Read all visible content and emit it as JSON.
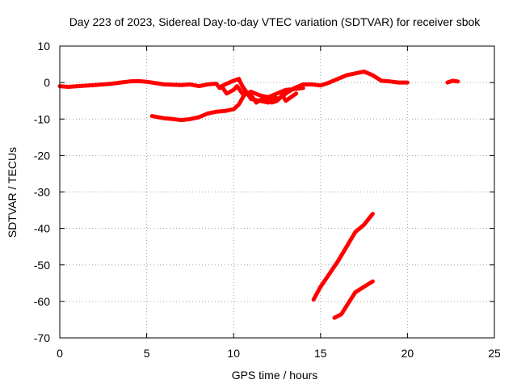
{
  "chart_data": {
    "type": "scatter",
    "title": "Day 223 of 2023, Sidereal Day-to-day VTEC variation (SDTVAR) for receiver sbok",
    "xlabel": "GPS time / hours",
    "ylabel": "SDTVAR / TECUs",
    "xlim": [
      0,
      25
    ],
    "ylim": [
      -70,
      10
    ],
    "xticks": [
      0,
      5,
      10,
      15,
      20,
      25
    ],
    "yticks": [
      10,
      0,
      -10,
      -20,
      -30,
      -40,
      -50,
      -60,
      -70
    ],
    "grid": true,
    "legend": "none",
    "color": "#ff0000",
    "series": [
      {
        "name": "track-main",
        "points": [
          [
            0,
            -1
          ],
          [
            0.5,
            -1.2
          ],
          [
            1,
            -1
          ],
          [
            2,
            -0.7
          ],
          [
            3,
            -0.3
          ],
          [
            3.5,
            0
          ],
          [
            4,
            0.3
          ],
          [
            4.5,
            0.4
          ],
          [
            5,
            0.2
          ],
          [
            6,
            -0.5
          ],
          [
            7,
            -0.7
          ],
          [
            7.5,
            -0.5
          ],
          [
            8,
            -1
          ],
          [
            8.5,
            -0.5
          ],
          [
            9,
            -0.3
          ],
          [
            9.2,
            -1.5
          ],
          [
            9.5,
            -0.5
          ],
          [
            10,
            0.5
          ],
          [
            10.3,
            1
          ],
          [
            10.5,
            -1
          ],
          [
            10.8,
            -3
          ],
          [
            11,
            -4.5
          ],
          [
            11.5,
            -5
          ],
          [
            12,
            -5.5
          ],
          [
            12.3,
            -4
          ],
          [
            12.6,
            -4.5
          ],
          [
            13,
            -3
          ],
          [
            13.5,
            -1.5
          ],
          [
            14,
            -0.5
          ],
          [
            14.5,
            -0.5
          ],
          [
            15,
            -0.8
          ],
          [
            15.5,
            0
          ],
          [
            16,
            1
          ],
          [
            16.5,
            2
          ],
          [
            17,
            2.5
          ],
          [
            17.5,
            3
          ],
          [
            18,
            2
          ],
          [
            18.5,
            0.5
          ],
          [
            19,
            0.3
          ],
          [
            19.5,
            0
          ],
          [
            20,
            0
          ]
        ]
      },
      {
        "name": "track-gap-end",
        "points": [
          [
            22.3,
            0
          ],
          [
            22.6,
            0.5
          ],
          [
            22.9,
            0.3
          ]
        ]
      },
      {
        "name": "track-lower-5to11",
        "points": [
          [
            5.3,
            -9.2
          ],
          [
            6,
            -9.8
          ],
          [
            6.5,
            -10
          ],
          [
            7,
            -10.3
          ],
          [
            7.5,
            -10
          ],
          [
            8,
            -9.5
          ],
          [
            8.5,
            -8.5
          ],
          [
            9,
            -8
          ],
          [
            9.5,
            -7.8
          ],
          [
            10,
            -7.3
          ],
          [
            10.3,
            -6
          ],
          [
            10.6,
            -3.5
          ],
          [
            11,
            -2.5
          ],
          [
            11.5,
            -3.5
          ],
          [
            12,
            -4
          ],
          [
            12.5,
            -3
          ],
          [
            13,
            -2
          ],
          [
            13.5,
            -1.8
          ],
          [
            14,
            -1.5
          ]
        ]
      },
      {
        "name": "track-wiggle-9to11",
        "points": [
          [
            9.3,
            -1
          ],
          [
            9.6,
            -3
          ],
          [
            10,
            -2
          ],
          [
            10.2,
            -1
          ],
          [
            10.5,
            -3
          ],
          [
            10.7,
            -2.5
          ],
          [
            11,
            -3.5
          ],
          [
            11.3,
            -5.5
          ],
          [
            11.8,
            -4
          ],
          [
            12.2,
            -5.5
          ],
          [
            12.5,
            -5
          ],
          [
            12.8,
            -3.5
          ],
          [
            13,
            -5
          ],
          [
            13.3,
            -4
          ],
          [
            13.6,
            -3
          ]
        ]
      },
      {
        "name": "track-steep-upper",
        "points": [
          [
            14.6,
            -59.5
          ],
          [
            15,
            -56
          ],
          [
            15.5,
            -52.5
          ],
          [
            16,
            -49
          ],
          [
            16.5,
            -45
          ],
          [
            17,
            -41
          ],
          [
            17.5,
            -39
          ],
          [
            18,
            -36
          ]
        ]
      },
      {
        "name": "track-steep-lower",
        "points": [
          [
            15.8,
            -64.5
          ],
          [
            16.2,
            -63.5
          ],
          [
            16.6,
            -60.5
          ],
          [
            17,
            -57.5
          ],
          [
            17.5,
            -56
          ],
          [
            18,
            -54.5
          ]
        ]
      }
    ]
  }
}
